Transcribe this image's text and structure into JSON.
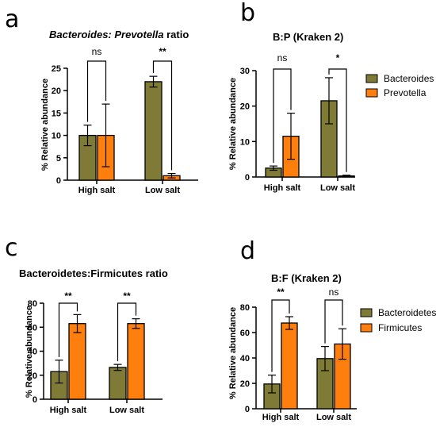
{
  "colors": {
    "bacteroides": "#7f7a35",
    "other": "#ff7f0e",
    "axis": "#000000"
  },
  "chart_data": [
    {
      "panel": "a",
      "type": "bar",
      "title_parts": [
        {
          "text": "Bacteroides: Prevotella",
          "italic": true
        },
        {
          "text": " ratio",
          "italic": false
        }
      ],
      "ylabel": "% Relative abundance",
      "categories": [
        "High salt",
        "Low salt"
      ],
      "yticks": [
        0,
        5,
        10,
        15,
        20,
        25
      ],
      "ylim": [
        0,
        25
      ],
      "series": [
        {
          "values": [
            10,
            22
          ],
          "errors": [
            2.3,
            1.2
          ],
          "color": "#7f7a35"
        },
        {
          "values": [
            10,
            1
          ],
          "errors": [
            7,
            0.5
          ],
          "color": "#ff7f0e"
        }
      ],
      "significance": [
        "ns",
        "**"
      ],
      "legend": null
    },
    {
      "panel": "b",
      "type": "bar",
      "title_parts": [
        {
          "text": "B:P (Kraken 2)",
          "italic": false
        }
      ],
      "ylabel": "% Relative abundance",
      "categories": [
        "High salt",
        "Low salt"
      ],
      "yticks": [
        0,
        10,
        20,
        30
      ],
      "ylim": [
        0,
        30
      ],
      "series": [
        {
          "name": "Bacteroides",
          "values": [
            2.5,
            21.5
          ],
          "errors": [
            0.6,
            6.5
          ],
          "color": "#7f7a35"
        },
        {
          "name": "Prevotella",
          "values": [
            11.5,
            0.3
          ],
          "errors": [
            6.5,
            0.2
          ],
          "color": "#ff7f0e"
        }
      ],
      "significance": [
        "ns",
        "*"
      ],
      "legend": [
        "Bacteroides",
        "Prevotella"
      ]
    },
    {
      "panel": "c",
      "type": "bar",
      "title_parts": [
        {
          "text": "Bacteroidetes:Firmicutes ratio",
          "italic": false
        }
      ],
      "ylabel": "% Relative abundance",
      "categories": [
        "High salt",
        "Low salt"
      ],
      "yticks": [
        0,
        20,
        40,
        60,
        80
      ],
      "ylim": [
        0,
        80
      ],
      "series": [
        {
          "values": [
            23,
            26.5
          ],
          "errors": [
            9.5,
            2.5
          ],
          "color": "#7f7a35"
        },
        {
          "values": [
            63,
            63
          ],
          "errors": [
            7.5,
            4
          ],
          "color": "#ff7f0e"
        }
      ],
      "significance": [
        "**",
        "**"
      ],
      "legend": null
    },
    {
      "panel": "d",
      "type": "bar",
      "title_parts": [
        {
          "text": "B:F (Kraken 2)",
          "italic": false
        }
      ],
      "ylabel": "% Relative abundance",
      "categories": [
        "High salt",
        "Low salt"
      ],
      "yticks": [
        0,
        20,
        40,
        60,
        80
      ],
      "ylim": [
        0,
        80
      ],
      "series": [
        {
          "name": "Bacteroidetes",
          "values": [
            19.5,
            39.5
          ],
          "errors": [
            7,
            9.5
          ],
          "color": "#7f7a35"
        },
        {
          "name": "Firmicutes",
          "values": [
            67.5,
            51
          ],
          "errors": [
            5,
            12
          ],
          "color": "#ff7f0e"
        }
      ],
      "significance": [
        "**",
        "ns"
      ],
      "legend": [
        "Bacteroidetes",
        "Firmicutes"
      ]
    }
  ]
}
